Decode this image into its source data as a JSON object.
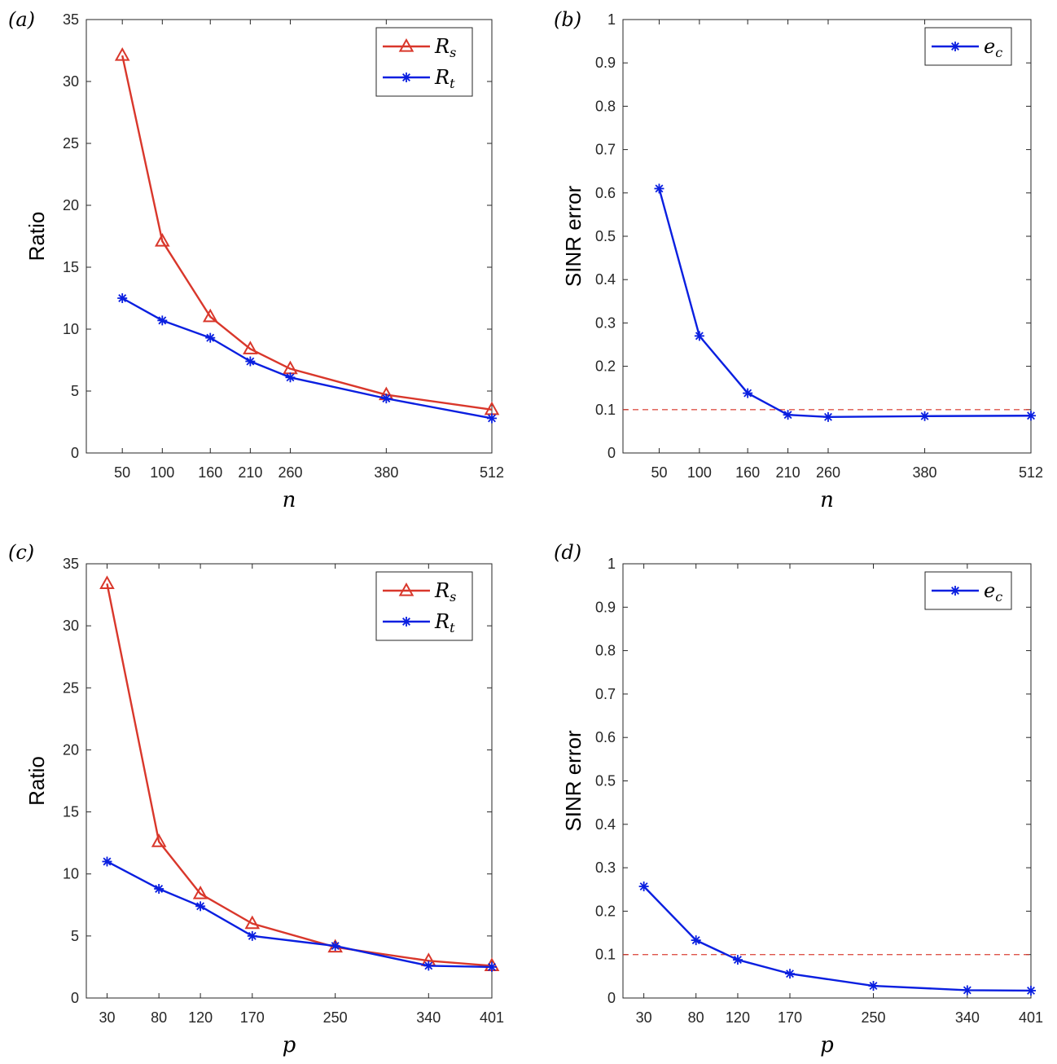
{
  "colors": {
    "red": "#d9372b",
    "blue": "#0a1fe0",
    "refline": "#d9372b"
  },
  "chart_data": [
    {
      "panel_label": "(a)",
      "type": "line",
      "xlabel": "n",
      "ylabel": "Ratio",
      "x": [
        50,
        100,
        160,
        210,
        260,
        380,
        512
      ],
      "xticks": [
        "50",
        "100",
        "160",
        "210",
        "260",
        "380",
        "512"
      ],
      "xlim": [
        5,
        512
      ],
      "ylim": [
        0,
        35
      ],
      "yticks": [
        "0",
        "5",
        "10",
        "15",
        "20",
        "25",
        "30",
        "35"
      ],
      "legend_position": "top-right",
      "series": [
        {
          "name": "R",
          "sub": "s",
          "marker": "triangle",
          "color": "red",
          "values": [
            32.1,
            17.1,
            11.0,
            8.4,
            6.8,
            4.7,
            3.5
          ]
        },
        {
          "name": "R",
          "sub": "t",
          "marker": "star",
          "color": "blue",
          "values": [
            12.5,
            10.7,
            9.3,
            7.4,
            6.1,
            4.4,
            2.8
          ]
        }
      ]
    },
    {
      "panel_label": "(b)",
      "type": "line",
      "xlabel": "n",
      "ylabel": "SINR error",
      "x": [
        50,
        100,
        160,
        210,
        260,
        380,
        512
      ],
      "xticks": [
        "50",
        "100",
        "160",
        "210",
        "260",
        "380",
        "512"
      ],
      "xlim": [
        5,
        512
      ],
      "ylim": [
        0,
        1
      ],
      "yticks": [
        "0",
        "0.1",
        "0.2",
        "0.3",
        "0.4",
        "0.5",
        "0.6",
        "0.7",
        "0.8",
        "0.9",
        "1"
      ],
      "reference_line": 0.1,
      "legend_position": "top-right",
      "series": [
        {
          "name": "e",
          "sub": "c",
          "marker": "star",
          "color": "blue",
          "values": [
            0.61,
            0.27,
            0.138,
            0.088,
            0.083,
            0.085,
            0.086
          ]
        }
      ]
    },
    {
      "panel_label": "(c)",
      "type": "line",
      "xlabel": "p",
      "ylabel": "Ratio",
      "x": [
        30,
        80,
        120,
        170,
        250,
        340,
        401
      ],
      "xticks": [
        "30",
        "80",
        "120",
        "170",
        "250",
        "340",
        "401"
      ],
      "xlim": [
        10,
        401
      ],
      "ylim": [
        0,
        35
      ],
      "yticks": [
        "0",
        "5",
        "10",
        "15",
        "20",
        "25",
        "30",
        "35"
      ],
      "legend_position": "top-right",
      "series": [
        {
          "name": "R",
          "sub": "s",
          "marker": "triangle",
          "color": "red",
          "values": [
            33.4,
            12.6,
            8.4,
            6.0,
            4.1,
            3.0,
            2.6
          ]
        },
        {
          "name": "R",
          "sub": "t",
          "marker": "star",
          "color": "blue",
          "values": [
            11.0,
            8.8,
            7.4,
            5.0,
            4.2,
            2.6,
            2.5
          ]
        }
      ]
    },
    {
      "panel_label": "(d)",
      "type": "line",
      "xlabel": "p",
      "ylabel": "SINR error",
      "x": [
        30,
        80,
        120,
        170,
        250,
        340,
        401
      ],
      "xticks": [
        "30",
        "80",
        "120",
        "170",
        "250",
        "340",
        "401"
      ],
      "xlim": [
        10,
        401
      ],
      "ylim": [
        0,
        1
      ],
      "yticks": [
        "0",
        "0.1",
        "0.2",
        "0.3",
        "0.4",
        "0.5",
        "0.6",
        "0.7",
        "0.8",
        "0.9",
        "1"
      ],
      "reference_line": 0.1,
      "legend_position": "top-right",
      "series": [
        {
          "name": "e",
          "sub": "c",
          "marker": "star",
          "color": "blue",
          "values": [
            0.257,
            0.133,
            0.088,
            0.056,
            0.028,
            0.018,
            0.017
          ]
        }
      ]
    }
  ]
}
